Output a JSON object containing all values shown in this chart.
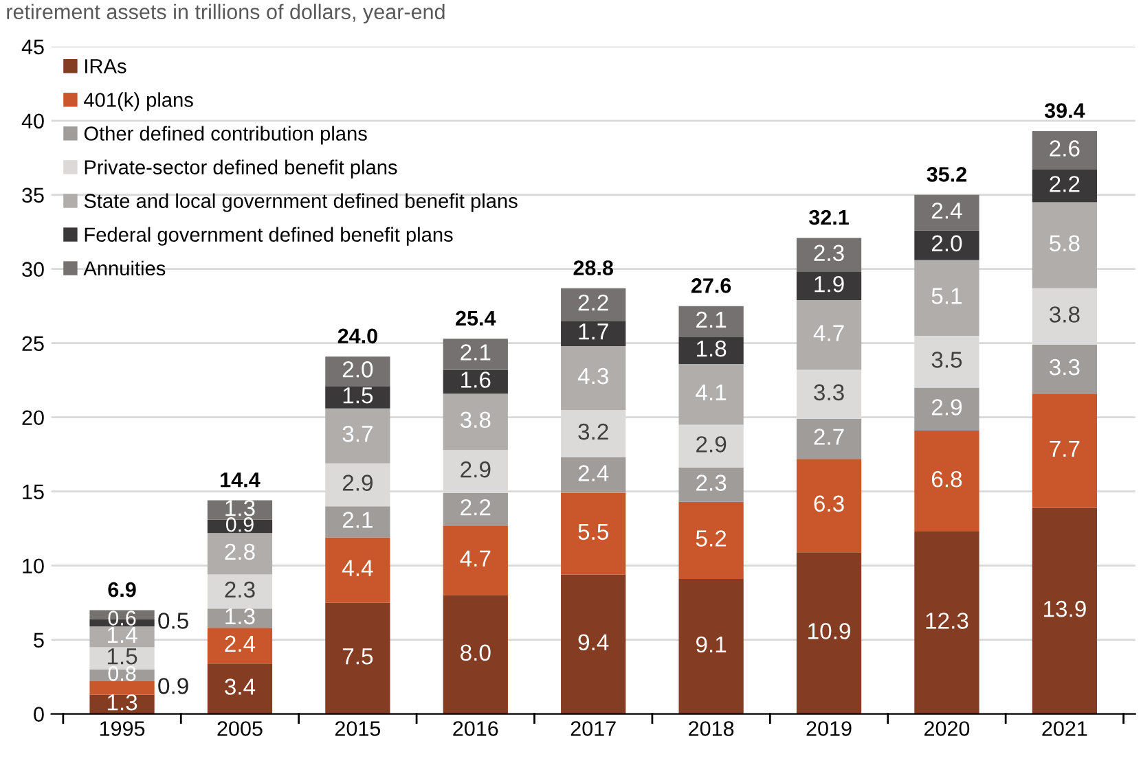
{
  "chart_data": {
    "type": "bar",
    "stacked": true,
    "subtitle": "retirement assets in trillions of dollars, year-end",
    "categories": [
      "1995",
      "2005",
      "2015",
      "2016",
      "2017",
      "2018",
      "2019",
      "2020",
      "2021"
    ],
    "series": [
      {
        "name": "IRAs",
        "color": "#843c22",
        "values": [
          1.3,
          3.4,
          7.5,
          8.0,
          9.4,
          9.1,
          10.9,
          12.3,
          13.9
        ],
        "value_labels": [
          "1.3",
          "3.4",
          "7.5",
          "8.0",
          "9.4",
          "9.1",
          "10.9",
          "12.3",
          "13.9"
        ]
      },
      {
        "name": "401(k) plans",
        "color": "#c9572b",
        "values": [
          0.9,
          2.4,
          4.4,
          4.7,
          5.5,
          5.2,
          6.3,
          6.8,
          7.7
        ],
        "value_labels": [
          "0.9",
          "2.4",
          "4.4",
          "4.7",
          "5.5",
          "5.2",
          "6.3",
          "6.8",
          "7.7"
        ]
      },
      {
        "name": "Other defined contribution plans",
        "color": "#a09c9a",
        "values": [
          0.8,
          1.3,
          2.1,
          2.2,
          2.4,
          2.3,
          2.7,
          2.9,
          3.3
        ],
        "value_labels": [
          "0.8",
          "1.3",
          "2.1",
          "2.2",
          "2.4",
          "2.3",
          "2.7",
          "2.9",
          "3.3"
        ]
      },
      {
        "name": "Private-sector defined benefit plans",
        "color": "#dcdad8",
        "values": [
          1.5,
          2.3,
          2.9,
          2.9,
          3.2,
          2.9,
          3.3,
          3.5,
          3.8
        ],
        "value_labels": [
          "1.5",
          "2.3",
          "2.9",
          "2.9",
          "3.2",
          "2.9",
          "3.3",
          "3.5",
          "3.8"
        ]
      },
      {
        "name": "State and local government defined benefit plans",
        "color": "#b0adab",
        "values": [
          1.4,
          2.8,
          3.7,
          3.8,
          4.3,
          4.1,
          4.7,
          5.1,
          5.8
        ],
        "value_labels": [
          "1.4",
          "2.8",
          "3.7",
          "3.8",
          "4.3",
          "4.1",
          "4.7",
          "5.1",
          "5.8"
        ]
      },
      {
        "name": "Federal government defined benefit plans",
        "color": "#3a3838",
        "values": [
          0.5,
          0.9,
          1.5,
          1.6,
          1.7,
          1.8,
          1.9,
          2.0,
          2.2
        ],
        "value_labels": [
          "0.5",
          "0.9",
          "1.5",
          "1.6",
          "1.7",
          "1.8",
          "1.9",
          "2.0",
          "2.2"
        ]
      },
      {
        "name": "Annuities",
        "color": "#767171",
        "values": [
          0.6,
          1.3,
          2.0,
          2.1,
          2.2,
          2.1,
          2.3,
          2.4,
          2.6
        ],
        "value_labels": [
          "0.6",
          "1.3",
          "2.0",
          "2.1",
          "2.2",
          "2.1",
          "2.3",
          "2.4",
          "2.6"
        ]
      }
    ],
    "totals": [
      "6.9",
      "14.4",
      "24.0",
      "25.4",
      "28.8",
      "27.6",
      "32.1",
      "35.2",
      "39.4"
    ],
    "ylim": [
      0,
      45
    ],
    "yticks": [
      0,
      5,
      10,
      15,
      20,
      25,
      30,
      35,
      40,
      45
    ],
    "grid": "y",
    "legend": "top left"
  }
}
